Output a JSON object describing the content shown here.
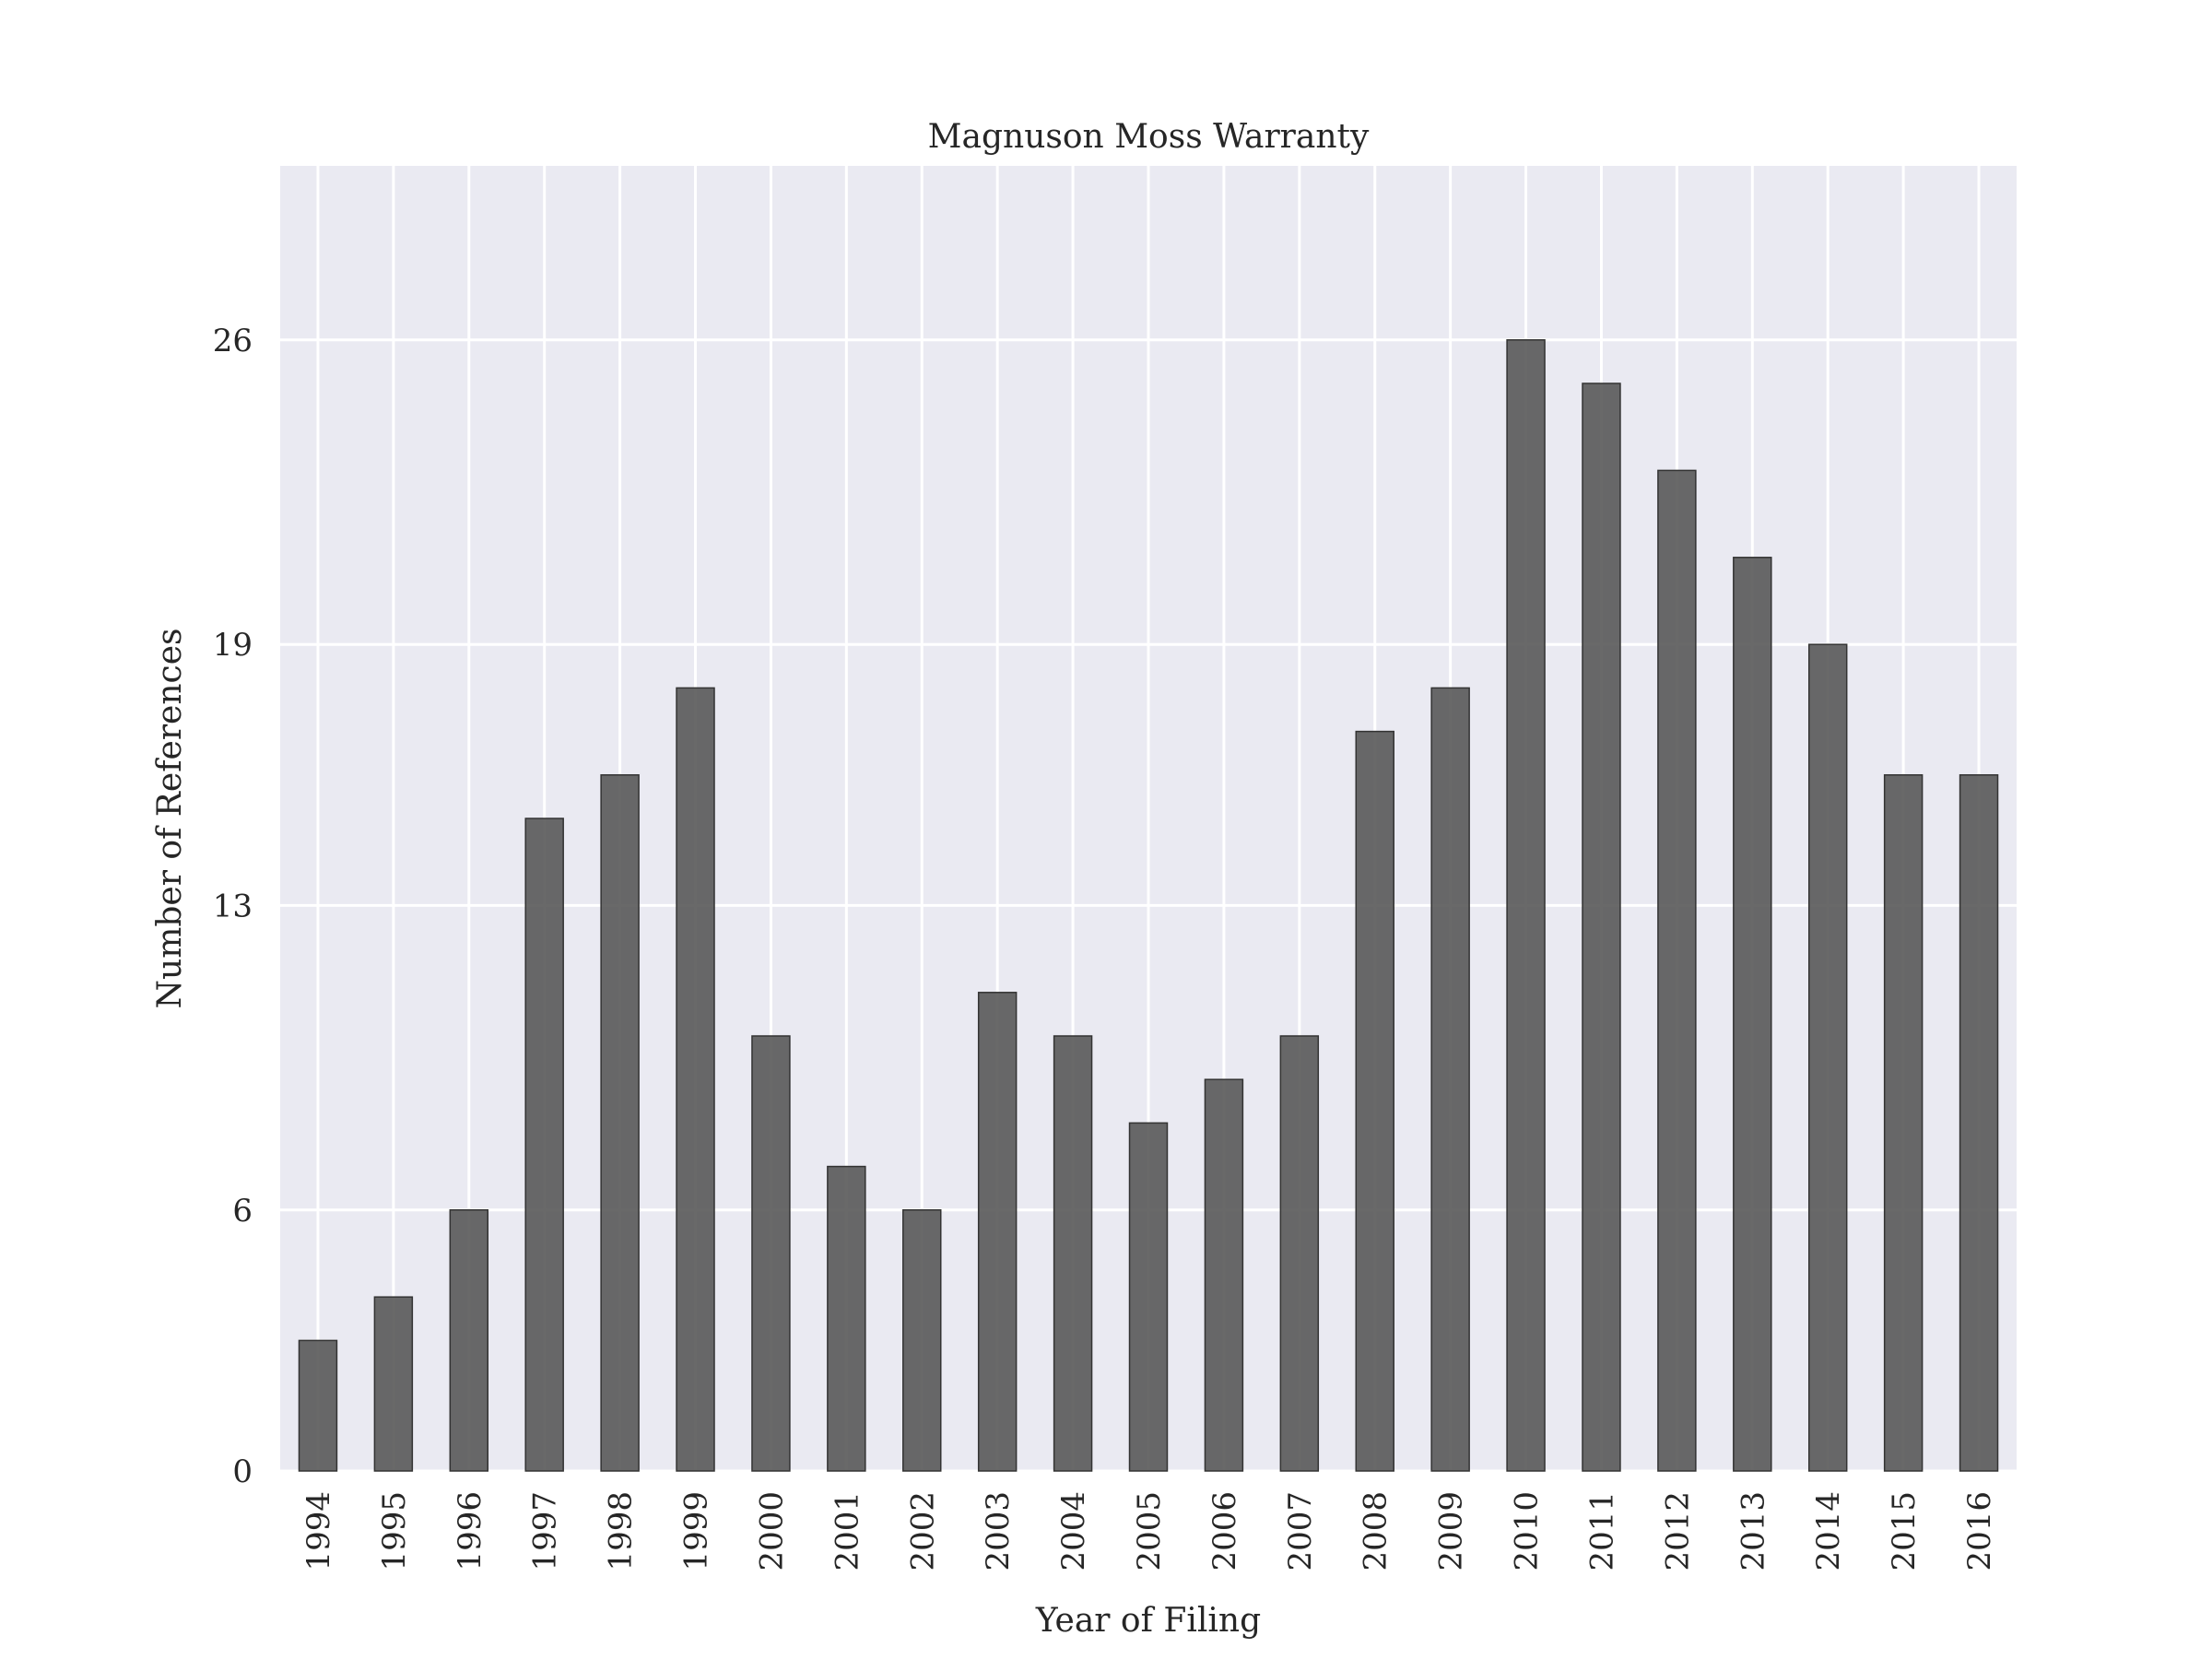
{
  "chart_data": {
    "type": "bar",
    "title": "Magnuson Moss Warranty",
    "xlabel": "Year of Filing",
    "ylabel": "Number of References",
    "categories": [
      "1994",
      "1995",
      "1996",
      "1997",
      "1998",
      "1999",
      "2000",
      "2001",
      "2002",
      "2003",
      "2004",
      "2005",
      "2006",
      "2007",
      "2008",
      "2009",
      "2010",
      "2011",
      "2012",
      "2013",
      "2014",
      "2015",
      "2016"
    ],
    "values": [
      3,
      4,
      6,
      15,
      16,
      18,
      10,
      7,
      6,
      11,
      10,
      8,
      9,
      10,
      17,
      18,
      26,
      25,
      23,
      21,
      19,
      16,
      16
    ],
    "yticks": [
      0,
      6,
      13,
      19,
      26
    ],
    "ylim": [
      0,
      30
    ],
    "grid": true,
    "colors": {
      "plot_background": "#eaeaf2",
      "grid": "#ffffff",
      "bar_fill": "#545454",
      "bar_edge": "#333333",
      "text": "#262626"
    }
  }
}
